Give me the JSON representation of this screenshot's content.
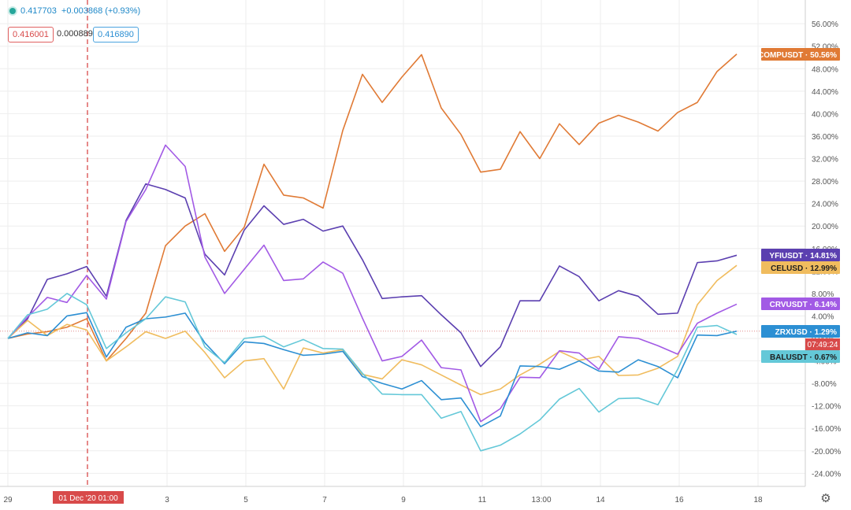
{
  "header": {
    "price": "0.417703",
    "change": "+0.003868 (+0.93%)",
    "ask": "0.416001",
    "spread": "0.000889",
    "bid": "0.416890"
  },
  "crosshair": {
    "date_label": "01 Dec '20  01:00"
  },
  "countdown": "07:49:24",
  "settings_icon": "gear-icon",
  "chart_data": {
    "type": "line",
    "x_tick_labels": [
      "29",
      "3",
      "5",
      "7",
      "9",
      "11",
      "13:00",
      "14",
      "16",
      "18"
    ],
    "y_tick_labels": [
      "56.00%",
      "52.00%",
      "48.00%",
      "44.00%",
      "40.00%",
      "36.00%",
      "32.00%",
      "28.00%",
      "24.00%",
      "20.00%",
      "16.00%",
      "12.00%",
      "8.00%",
      "4.00%",
      "0.00%",
      "-4.00%",
      "-8.00%",
      "-12.00%",
      "-16.00%",
      "-20.00%",
      "-24.00%"
    ],
    "ylim": [
      -25,
      59
    ],
    "x_dates": [
      "29",
      "29.5",
      "30",
      "30.5",
      "1",
      "1.5",
      "2",
      "2.5",
      "3",
      "3.5",
      "4",
      "4.5",
      "5",
      "5.5",
      "6",
      "6.5",
      "7",
      "7.5",
      "8",
      "8.5",
      "9",
      "9.5",
      "10",
      "10.5",
      "11",
      "11.5",
      "12",
      "12.5",
      "13",
      "13.5",
      "14",
      "14.5",
      "15",
      "15.5",
      "16",
      "16.5",
      "17",
      "17.5"
    ],
    "grid": true,
    "series": [
      {
        "name": "COMPUSDT",
        "color": "#e07a35",
        "last_label": "50.56%",
        "values": [
          0,
          0.8,
          1.2,
          2,
          3.5,
          -4,
          0,
          4.5,
          16.5,
          20,
          22.2,
          15.5,
          19.8,
          31,
          25.5,
          25,
          23.2,
          37,
          47,
          42,
          46.5,
          50.5,
          41,
          36.3,
          29.6,
          30.1,
          36.8,
          32,
          38.2,
          34.5,
          38.3,
          39.7,
          38.5,
          36.9,
          40.2,
          42,
          47.5,
          50.6
        ]
      },
      {
        "name": "YFIUSDT",
        "color": "#5b3fb0",
        "last_label": "14.81%",
        "values": [
          0,
          3.5,
          10.5,
          11.5,
          12.8,
          7.5,
          21,
          27.5,
          26.5,
          25,
          15,
          11.3,
          19.3,
          23.6,
          20.3,
          21.2,
          19.1,
          20,
          14,
          7.1,
          7.4,
          7.6,
          4.2,
          1,
          -5,
          -1.5,
          6.7,
          6.7,
          12.9,
          11,
          6.7,
          8.5,
          7.5,
          4.3,
          4.5,
          13.5,
          13.8,
          14.8
        ]
      },
      {
        "name": "CELUSD",
        "color": "#f0bc5e",
        "last_label": "12.99%",
        "values": [
          0,
          3.2,
          0.5,
          2.5,
          1.5,
          -4,
          -1.5,
          1.2,
          0,
          1.3,
          -2.5,
          -7,
          -4,
          -3.6,
          -9,
          -1.7,
          -2.6,
          -2,
          -6.4,
          -7.2,
          -3.8,
          -4.7,
          -6.5,
          -8.3,
          -10,
          -9,
          -6.5,
          -4.6,
          -2.3,
          -3.9,
          -3.2,
          -6.6,
          -6.5,
          -5.3,
          -3.2,
          6,
          10.3,
          13
        ]
      },
      {
        "name": "CRVUSDT",
        "color": "#a25ae5",
        "last_label": "6.14%",
        "values": [
          0,
          3.8,
          7.3,
          6.4,
          11.2,
          7,
          20.8,
          26.5,
          34.4,
          30.6,
          14.5,
          8,
          12.3,
          16.6,
          10.3,
          10.6,
          13.6,
          11.6,
          3.6,
          -4,
          -3.2,
          -0.3,
          -5.2,
          -5.6,
          -14.8,
          -12.5,
          -6.9,
          -7,
          -2.2,
          -2.6,
          -5.5,
          0.3,
          0,
          -1.3,
          -2.8,
          2.7,
          4.5,
          6.1
        ]
      },
      {
        "name": "ZRXUSD",
        "color": "#2c8fd3",
        "last_label": "1.29%",
        "values": [
          0,
          1,
          0.5,
          4,
          4.6,
          -3.3,
          2,
          3.5,
          3.8,
          4.5,
          -0.8,
          -4.5,
          -0.6,
          -0.9,
          -2,
          -3,
          -2.8,
          -2.3,
          -6.8,
          -8,
          -9,
          -7.5,
          -10.9,
          -10.6,
          -15.7,
          -13.8,
          -4.9,
          -5,
          -5.5,
          -4,
          -5.8,
          -6,
          -3.8,
          -5,
          -7,
          0.6,
          0.5,
          1.3
        ]
      },
      {
        "name": "BALUSDT",
        "color": "#64c8d8",
        "last_label": "0.67%",
        "values": [
          0,
          4.2,
          5.2,
          8,
          6,
          -1.8,
          1,
          3.5,
          7.4,
          6.5,
          -1.5,
          -4.3,
          0,
          0.4,
          -1.5,
          -0.2,
          -1.8,
          -1.9,
          -6.2,
          -9.9,
          -10,
          -10,
          -14.2,
          -13,
          -20,
          -19,
          -17,
          -14.5,
          -10.8,
          -8.9,
          -13.1,
          -10.7,
          -10.6,
          -11.8,
          -5.5,
          2,
          2.3,
          0.7
        ]
      }
    ]
  }
}
